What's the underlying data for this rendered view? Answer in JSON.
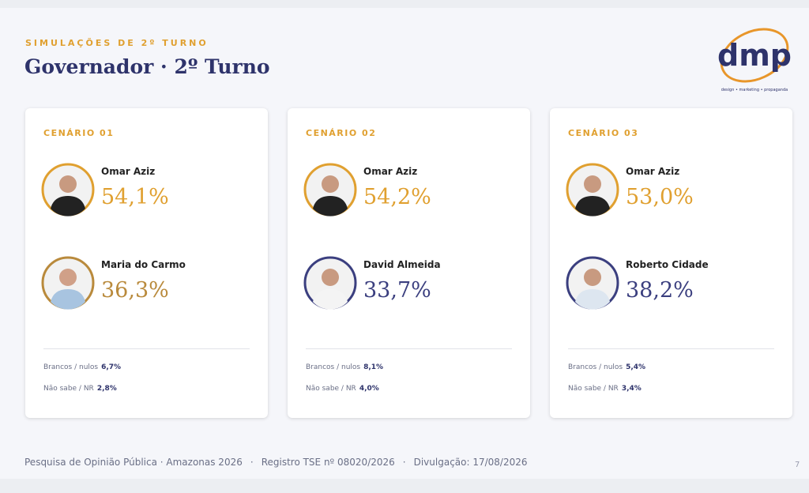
{
  "header": {
    "kicker": "SIMULAÇÕES DE 2º TURNO",
    "title": "Governador · 2º Turno"
  },
  "logo": {
    "text": "dmp",
    "tagline": "design • marketing • propaganda"
  },
  "scenarios": [
    {
      "label": "CENÁRIO 01",
      "candidates": [
        {
          "name": "Omar Aziz",
          "percent": "54,1%"
        },
        {
          "name": "Maria do Carmo",
          "percent": "36,3%"
        }
      ],
      "others": [
        {
          "label": "Brancos / nulos",
          "value": "6,7%"
        },
        {
          "label": "Não sabe / NR",
          "value": "2,8%"
        }
      ]
    },
    {
      "label": "CENÁRIO 02",
      "candidates": [
        {
          "name": "Omar Aziz",
          "percent": "54,2%"
        },
        {
          "name": "David Almeida",
          "percent": "33,7%"
        }
      ],
      "others": [
        {
          "label": "Brancos / nulos",
          "value": "8,1%"
        },
        {
          "label": "Não sabe / NR",
          "value": "4,0%"
        }
      ]
    },
    {
      "label": "CENÁRIO 03",
      "candidates": [
        {
          "name": "Omar Aziz",
          "percent": "53,0%"
        },
        {
          "name": "Roberto Cidade",
          "percent": "38,2%"
        }
      ],
      "others": [
        {
          "label": "Brancos / nulos",
          "value": "5,4%"
        },
        {
          "label": "Não sabe / NR",
          "value": "3,4%"
        }
      ]
    }
  ],
  "footer": {
    "items": [
      "Pesquisa de Opinião Pública · Amazonas 2026",
      "Registro TSE nº 08020/2026",
      "Divulgação: 17/08/2026"
    ],
    "page": "7"
  }
}
